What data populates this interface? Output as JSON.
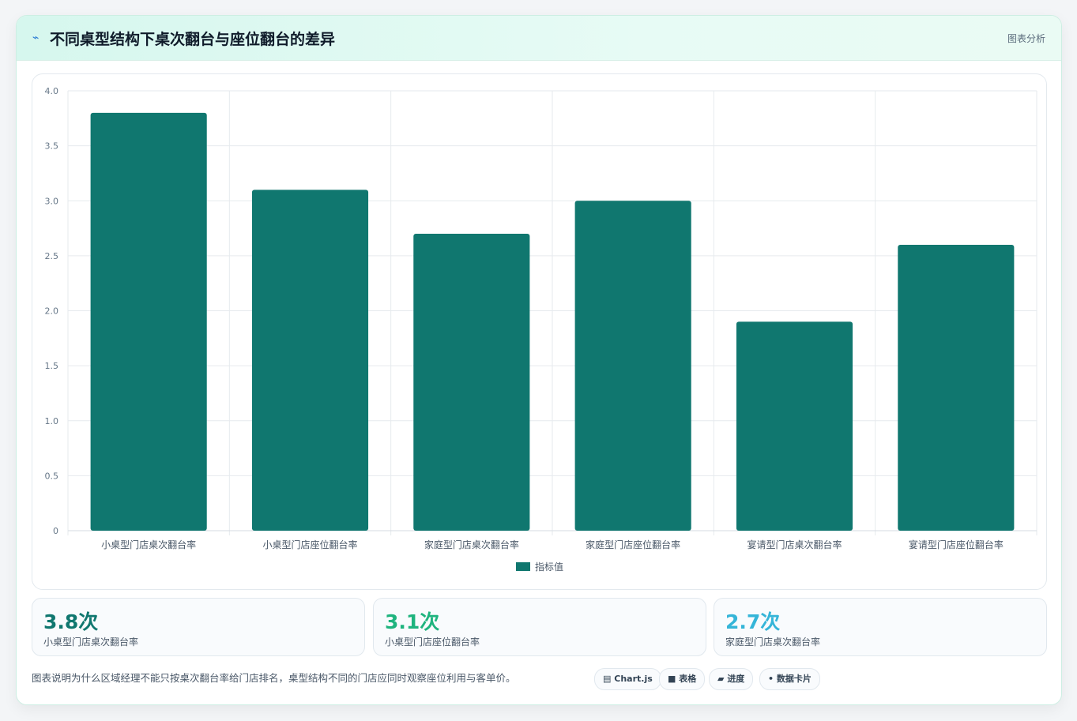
{
  "header": {
    "icon": "pulse-icon",
    "title": "不同桌型结构下桌次翻台与座位翻台的差异",
    "tag": "图表分析"
  },
  "chart_data": {
    "type": "bar",
    "categories": [
      "小桌型门店桌次翻台率",
      "小桌型门店座位翻台率",
      "家庭型门店桌次翻台率",
      "家庭型门店座位翻台率",
      "宴请型门店桌次翻台率",
      "宴请型门店座位翻台率"
    ],
    "series": [
      {
        "name": "指标值",
        "values": [
          3.8,
          3.1,
          2.7,
          3.0,
          1.9,
          2.6
        ],
        "color": "#10776f"
      }
    ],
    "ylim": [
      0,
      4.0
    ],
    "yticks": [
      "4.0",
      "3.5",
      "3.0",
      "2.5",
      "2.0",
      "1.5",
      "1.0",
      "0.5",
      "0"
    ],
    "grid": true,
    "legend": "bottom"
  },
  "stats": [
    {
      "value": "3.8次",
      "label": "小桌型门店桌次翻台率",
      "color": "#10776f"
    },
    {
      "value": "3.1次",
      "label": "小桌型门店座位翻台率",
      "color": "#1fb47e"
    },
    {
      "value": "2.7次",
      "label": "家庭型门店桌次翻台率",
      "color": "#35b5d8"
    }
  ],
  "description": "图表说明为什么区域经理不能只按桌次翻台率给门店排名，桌型结构不同的门店应同时观察座位利用与客单价。",
  "chips": [
    {
      "icon": "▤",
      "label": "Chart.js"
    },
    {
      "icon": "■",
      "label": "表格"
    },
    {
      "icon": "▰",
      "label": "进度"
    },
    {
      "icon": "•",
      "label": "数据卡片"
    }
  ]
}
